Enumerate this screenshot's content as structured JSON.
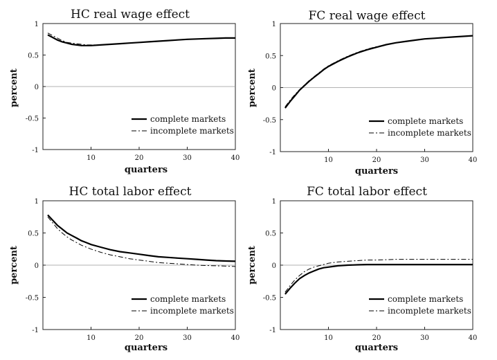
{
  "chart_data": [
    {
      "type": "line",
      "title": "HC real wage effect",
      "xlabel": "quarters",
      "ylabel": "percent",
      "xlim": [
        0,
        40
      ],
      "ylim": [
        -1,
        1
      ],
      "xticks": [
        "10",
        "20",
        "30",
        "40"
      ],
      "yticks": [
        "1",
        "0.5",
        "0",
        "-0.5",
        "-1"
      ],
      "legend_position": "bottom-right",
      "x": [
        1,
        2,
        3,
        4,
        5,
        6,
        7,
        8,
        9,
        10,
        12,
        14,
        16,
        18,
        20,
        22,
        24,
        26,
        28,
        30,
        32,
        34,
        36,
        38,
        40
      ],
      "series": [
        {
          "name": "complete markets",
          "style": "solid",
          "values": [
            0.82,
            0.78,
            0.74,
            0.71,
            0.69,
            0.67,
            0.66,
            0.65,
            0.65,
            0.65,
            0.66,
            0.67,
            0.68,
            0.69,
            0.7,
            0.71,
            0.72,
            0.73,
            0.74,
            0.75,
            0.755,
            0.76,
            0.765,
            0.77,
            0.77
          ]
        },
        {
          "name": "incomplete markets",
          "style": "dash-dot",
          "values": [
            0.85,
            0.81,
            0.77,
            0.73,
            0.7,
            0.69,
            0.68,
            0.67,
            0.66,
            0.66,
            0.66,
            0.67,
            0.68,
            0.69,
            0.7,
            0.71,
            0.72,
            0.73,
            0.74,
            0.75,
            0.755,
            0.76,
            0.765,
            0.77,
            0.77
          ]
        }
      ]
    },
    {
      "type": "line",
      "title": "FC real wage effect",
      "xlabel": "quarters",
      "ylabel": "percent",
      "xlim": [
        0,
        40
      ],
      "ylim": [
        -1,
        1
      ],
      "xticks": [
        "10",
        "20",
        "30",
        "40"
      ],
      "yticks": [
        "1",
        "0.5",
        "0",
        "-0.5",
        "-1"
      ],
      "legend_position": "bottom-right",
      "x": [
        1,
        2,
        3,
        4,
        5,
        6,
        7,
        8,
        9,
        10,
        12,
        14,
        16,
        18,
        20,
        22,
        24,
        26,
        28,
        30,
        32,
        34,
        36,
        38,
        40
      ],
      "series": [
        {
          "name": "complete markets",
          "style": "solid",
          "values": [
            -0.32,
            -0.22,
            -0.13,
            -0.04,
            0.03,
            0.1,
            0.16,
            0.22,
            0.28,
            0.33,
            0.41,
            0.48,
            0.54,
            0.59,
            0.63,
            0.67,
            0.7,
            0.72,
            0.74,
            0.76,
            0.77,
            0.78,
            0.79,
            0.8,
            0.81
          ]
        },
        {
          "name": "incomplete markets",
          "style": "dash-dot",
          "values": [
            -0.3,
            -0.2,
            -0.11,
            -0.03,
            0.04,
            0.11,
            0.17,
            0.23,
            0.29,
            0.34,
            0.42,
            0.49,
            0.55,
            0.6,
            0.64,
            0.67,
            0.7,
            0.72,
            0.74,
            0.76,
            0.77,
            0.78,
            0.79,
            0.8,
            0.81
          ]
        }
      ]
    },
    {
      "type": "line",
      "title": "HC total labor effect",
      "xlabel": "quarters",
      "ylabel": "percent",
      "xlim": [
        0,
        40
      ],
      "ylim": [
        -1,
        1
      ],
      "xticks": [
        "10",
        "20",
        "30",
        "40"
      ],
      "yticks": [
        "1",
        "0.5",
        "0",
        "-0.5",
        "-1"
      ],
      "legend_position": "bottom-right",
      "x": [
        1,
        2,
        3,
        4,
        5,
        6,
        7,
        8,
        9,
        10,
        12,
        14,
        16,
        18,
        20,
        22,
        24,
        26,
        28,
        30,
        32,
        34,
        36,
        38,
        40
      ],
      "series": [
        {
          "name": "complete markets",
          "style": "solid",
          "values": [
            0.78,
            0.7,
            0.62,
            0.56,
            0.5,
            0.46,
            0.42,
            0.38,
            0.35,
            0.32,
            0.28,
            0.24,
            0.21,
            0.19,
            0.17,
            0.15,
            0.13,
            0.12,
            0.11,
            0.1,
            0.09,
            0.08,
            0.07,
            0.065,
            0.06
          ]
        },
        {
          "name": "incomplete markets",
          "style": "dash-dot",
          "values": [
            0.75,
            0.66,
            0.57,
            0.5,
            0.44,
            0.39,
            0.35,
            0.31,
            0.28,
            0.25,
            0.2,
            0.16,
            0.13,
            0.1,
            0.08,
            0.06,
            0.04,
            0.03,
            0.02,
            0.01,
            0.0,
            -0.005,
            -0.01,
            -0.015,
            -0.02
          ]
        }
      ]
    },
    {
      "type": "line",
      "title": "FC total labor effect",
      "xlabel": "quarters",
      "ylabel": "percent",
      "xlim": [
        0,
        40
      ],
      "ylim": [
        -1,
        1
      ],
      "xticks": [
        "10",
        "20",
        "30",
        "40"
      ],
      "yticks": [
        "1",
        "0.5",
        "0",
        "-0.5",
        "-1"
      ],
      "legend_position": "bottom-right",
      "x": [
        1,
        2,
        3,
        4,
        5,
        6,
        7,
        8,
        9,
        10,
        12,
        14,
        16,
        18,
        20,
        22,
        24,
        26,
        28,
        30,
        32,
        34,
        36,
        38,
        40
      ],
      "series": [
        {
          "name": "complete markets",
          "style": "solid",
          "values": [
            -0.45,
            -0.36,
            -0.28,
            -0.21,
            -0.16,
            -0.12,
            -0.09,
            -0.06,
            -0.04,
            -0.03,
            -0.01,
            0.0,
            0.005,
            0.01,
            0.01,
            0.01,
            0.01,
            0.01,
            0.01,
            0.01,
            0.01,
            0.01,
            0.01,
            0.01,
            0.01
          ]
        },
        {
          "name": "incomplete markets",
          "style": "dash-dot",
          "values": [
            -0.42,
            -0.32,
            -0.23,
            -0.16,
            -0.1,
            -0.06,
            -0.03,
            -0.01,
            0.01,
            0.03,
            0.05,
            0.06,
            0.07,
            0.08,
            0.08,
            0.085,
            0.09,
            0.09,
            0.09,
            0.09,
            0.09,
            0.09,
            0.09,
            0.09,
            0.09
          ]
        }
      ]
    }
  ]
}
